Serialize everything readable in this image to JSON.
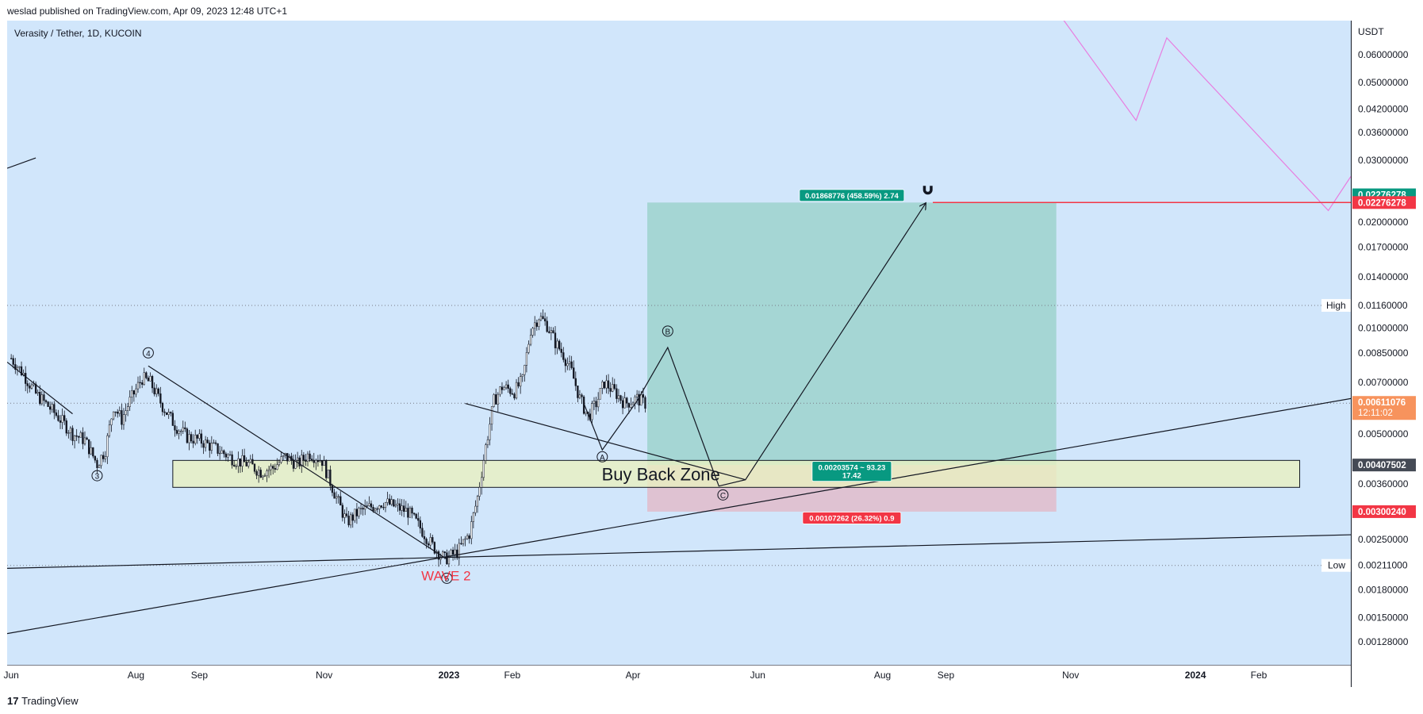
{
  "header": {
    "published": "weslad published on TradingView.com, Apr 09, 2023 12:48 UTC+1"
  },
  "footer": {
    "logo": "17",
    "brand": "TradingView"
  },
  "chart_data": {
    "type": "candlestick",
    "symbol": "Verasity / Tether, 1D, KUCOIN",
    "currency": "USDT",
    "scale": "log",
    "ylim": [
      0.0011,
      0.075
    ],
    "y_ticks": [
      0.06,
      0.05,
      0.042,
      0.036,
      0.03,
      0.02,
      0.017,
      0.014,
      0.01,
      0.0085,
      0.007,
      0.005,
      0.0036,
      0.0025,
      0.0018,
      0.0015,
      0.00128
    ],
    "y_tick_labels": [
      "0.06000000",
      "0.05000000",
      "0.04200000",
      "0.03600000",
      "0.03000000",
      "0.02000000",
      "0.01700000",
      "0.01400000",
      "0.01000000",
      "0.00850000",
      "0.00700000",
      "0.00500000",
      "0.00360000",
      "0.00250000",
      "0.00180000",
      "0.00150000",
      "0.00128000"
    ],
    "x_ticks": [
      {
        "label": "Jun",
        "x": 0
      },
      {
        "label": "Aug",
        "x": 61
      },
      {
        "label": "Sep",
        "x": 92
      },
      {
        "label": "Nov",
        "x": 153
      },
      {
        "label": "2023",
        "x": 214
      },
      {
        "label": "Feb",
        "x": 245
      },
      {
        "label": "Apr",
        "x": 304
      },
      {
        "label": "Jun",
        "x": 365
      },
      {
        "label": "Aug",
        "x": 426
      },
      {
        "label": "Sep",
        "x": 457
      },
      {
        "label": "Nov",
        "x": 518
      },
      {
        "label": "2024",
        "x": 579
      },
      {
        "label": "Feb",
        "x": 610
      }
    ],
    "x_range": [
      -2,
      655
    ],
    "price_path": [
      [
        0,
        0.0082
      ],
      [
        6,
        0.0074
      ],
      [
        12,
        0.0065
      ],
      [
        18,
        0.006
      ],
      [
        24,
        0.0055
      ],
      [
        30,
        0.005
      ],
      [
        36,
        0.0048
      ],
      [
        42,
        0.0041
      ],
      [
        46,
        0.0045
      ],
      [
        50,
        0.006
      ],
      [
        54,
        0.0055
      ],
      [
        58,
        0.0062
      ],
      [
        64,
        0.0072
      ],
      [
        68,
        0.007
      ],
      [
        74,
        0.006
      ],
      [
        80,
        0.0053
      ],
      [
        86,
        0.0049
      ],
      [
        92,
        0.0048
      ],
      [
        98,
        0.0046
      ],
      [
        104,
        0.0044
      ],
      [
        110,
        0.0042
      ],
      [
        116,
        0.0041
      ],
      [
        122,
        0.0039
      ],
      [
        128,
        0.004
      ],
      [
        134,
        0.0043
      ],
      [
        140,
        0.0041
      ],
      [
        146,
        0.0044
      ],
      [
        152,
        0.0042
      ],
      [
        158,
        0.0034
      ],
      [
        164,
        0.0028
      ],
      [
        170,
        0.003
      ],
      [
        176,
        0.0031
      ],
      [
        182,
        0.0032
      ],
      [
        188,
        0.0031
      ],
      [
        194,
        0.003
      ],
      [
        200,
        0.0027
      ],
      [
        206,
        0.0024
      ],
      [
        212,
        0.0022
      ],
      [
        218,
        0.0023
      ],
      [
        224,
        0.0026
      ],
      [
        228,
        0.0033
      ],
      [
        232,
        0.0046
      ],
      [
        236,
        0.0062
      ],
      [
        240,
        0.0068
      ],
      [
        246,
        0.0066
      ],
      [
        250,
        0.0071
      ],
      [
        254,
        0.0099
      ],
      [
        258,
        0.0108
      ],
      [
        262,
        0.0102
      ],
      [
        266,
        0.0091
      ],
      [
        270,
        0.0084
      ],
      [
        274,
        0.0075
      ],
      [
        278,
        0.0063
      ],
      [
        282,
        0.0056
      ],
      [
        286,
        0.0061
      ],
      [
        290,
        0.007
      ],
      [
        296,
        0.0065
      ],
      [
        300,
        0.0061
      ],
      [
        306,
        0.0063
      ],
      [
        310,
        0.0061
      ]
    ],
    "position": {
      "entry": 0.00407502,
      "target": 0.02276278,
      "stop": 0.003002,
      "x_start": 311,
      "x_end": 511
    },
    "labels": {
      "last_price": "0.00611076",
      "countdown": "12:11:02",
      "entry": "0.00407502",
      "target_top": "0.02276278",
      "target_line": "0.02276278",
      "stop": "0.00300240",
      "high_label": "High",
      "high_value": "0.01160000",
      "low_label": "Low",
      "low_value": "0.00211000",
      "target_pill": "0.01868776 (458.59%) 2.74",
      "entry_pill_1": "0.00203574 ~ 93.23",
      "entry_pill_2": "17.42",
      "stop_pill": "0.00107262 (26.32%) 0.9",
      "buy_zone": "Buy Back Zone",
      "wave2": "WAVE 2",
      "wave_3": "3",
      "wave_4": "4",
      "wave_5": "5",
      "wave_a": "A",
      "wave_b": "B",
      "wave_c": "C"
    },
    "high": 0.0116,
    "low": 0.00211,
    "buy_zone": {
      "y_top": 0.0042,
      "y_bottom": 0.00352,
      "x_start": 79,
      "x_end": 630
    },
    "wave_projection": [
      [
        306,
        0.0062
      ],
      [
        321,
        0.0088
      ],
      [
        346,
        0.00355
      ],
      [
        359,
        0.0037
      ],
      [
        447,
        0.0226
      ]
    ],
    "correction_path": [
      [
        280,
        0.0061
      ],
      [
        289,
        0.0045
      ],
      [
        306,
        0.0062
      ]
    ],
    "wave_points": {
      "3": [
        42,
        0.0038
      ],
      "4": [
        67,
        0.0085
      ],
      "5": [
        213,
        0.00194
      ],
      "A": [
        289,
        0.0043
      ],
      "B": [
        321,
        0.0098
      ],
      "C": [
        348,
        0.00335
      ]
    },
    "trend_lines": [
      {
        "from": [
          -2,
          0.00207
        ],
        "to": [
          655,
          0.00258
        ]
      },
      {
        "from": [
          -2,
          0.00135
        ],
        "to": [
          655,
          0.0063
        ]
      },
      {
        "from": [
          222,
          0.0061
        ],
        "to": [
          359,
          0.0037
        ]
      },
      {
        "from": [
          67,
          0.0078
        ],
        "to": [
          213,
          0.0022
        ]
      },
      {
        "from": [
          -2,
          0.008
        ],
        "to": [
          30,
          0.0057
        ]
      },
      {
        "from": [
          -2,
          0.0285
        ],
        "to": [
          12,
          0.0305
        ]
      }
    ],
    "pink_line": [
      [
        508,
        0.085
      ],
      [
        550,
        0.039
      ],
      [
        565,
        0.067
      ],
      [
        644,
        0.0216
      ],
      [
        655,
        0.027
      ]
    ],
    "colors": {
      "background": "#d1e6fb",
      "bull": "#089981",
      "bear": "#131722",
      "target_zone": "rgba(130,200,180,0.55)",
      "stop_zone": "rgba(240,150,160,0.45)",
      "buy_zone": "#e8f0c0",
      "red": "#f23645",
      "green": "#089981",
      "orange": "#f7935d",
      "pink": "#e87de0"
    }
  }
}
